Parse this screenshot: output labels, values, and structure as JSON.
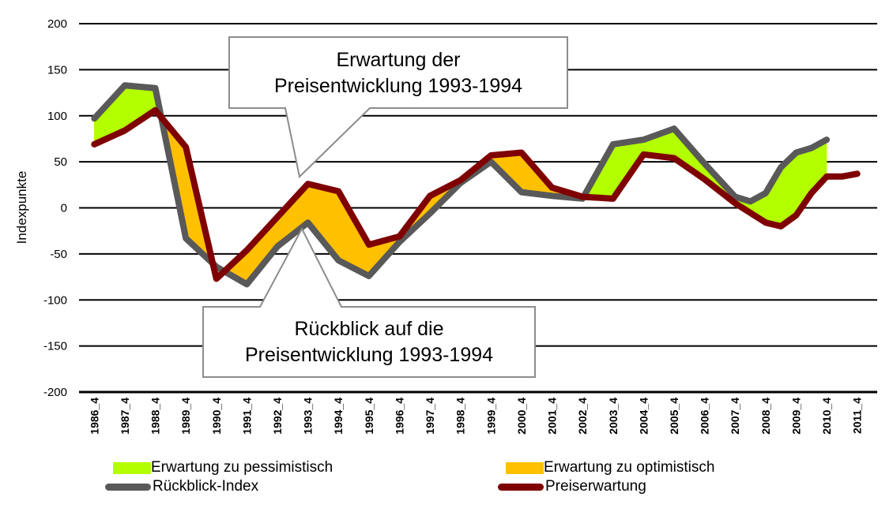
{
  "chart_data": {
    "type": "line",
    "title": "",
    "xlabel": "",
    "ylabel": "Indexpunkte",
    "ylim": [
      -200,
      200
    ],
    "yticks": [
      200,
      150,
      100,
      50,
      0,
      -50,
      -100,
      -150,
      -200
    ],
    "grid": true,
    "legend_position": "bottom",
    "categories": [
      "1986_4",
      "1987_4",
      "1988_4",
      "1989_4",
      "1990_4",
      "1991_4",
      "1992_4",
      "1993_4",
      "1994_4",
      "1995_4",
      "1996_4",
      "1997_4",
      "1998_4",
      "1999_4",
      "2000_4",
      "2001_4",
      "2002_4",
      "2003_4",
      "2004_4",
      "2005_4",
      "2006_4",
      "2007_4",
      "2008_4",
      "2009_4",
      "2010_4",
      "2011_4"
    ],
    "series": [
      {
        "name": "Rückblick-Index",
        "color": "#595959",
        "x": [
          1986,
          1987,
          1988,
          1989,
          1990,
          1991,
          1992,
          1993,
          1994,
          1995,
          1996,
          1997,
          1998,
          1999,
          2000,
          2001,
          2002,
          2003,
          2004,
          2005,
          2006,
          2007,
          2007.5,
          2008,
          2008.5,
          2009,
          2009.5,
          2010
        ],
        "y": [
          97,
          133,
          130,
          -33,
          -64,
          -83,
          -42,
          -16,
          -57,
          -74,
          -37,
          -6,
          27,
          50,
          17,
          13,
          10,
          69,
          74,
          86,
          48,
          12,
          7,
          16,
          44,
          60,
          65,
          74
        ]
      },
      {
        "name": "Preiserwartung",
        "color": "#7f0000",
        "x": [
          1986,
          1987,
          1988,
          1989,
          1990,
          1991,
          1992,
          1993,
          1994,
          1995,
          1996,
          1997,
          1998,
          1999,
          2000,
          2001,
          2002,
          2003,
          2004,
          2005,
          2006,
          2007,
          2008,
          2008.5,
          2009,
          2009.5,
          2010,
          2010.5,
          2011
        ],
        "y": [
          69,
          84,
          106,
          66,
          -77,
          -46,
          -10,
          26,
          18,
          -40,
          -31,
          13,
          30,
          57,
          60,
          22,
          12,
          10,
          58,
          54,
          31,
          5,
          -16,
          -20,
          -8,
          16,
          34,
          34,
          37
        ]
      }
    ],
    "areas": [
      {
        "name": "Erwartung zu pessimistisch",
        "color": "#b3ff00"
      },
      {
        "name": "Erwartung zu optimistisch",
        "color": "#ffc000"
      }
    ],
    "annotations": [
      {
        "line1": "Erwartung der",
        "line2": "Preisentwicklung 1993-1994"
      },
      {
        "line1": "Rückblick auf die",
        "line2": "Preisentwicklung 1993-1994"
      }
    ]
  },
  "legend": {
    "pessimistic": "Erwartung zu pessimistisch",
    "optimistic": "Erwartung zu optimistisch",
    "retro": "Rückblick-Index",
    "expect": "Preiserwartung"
  }
}
